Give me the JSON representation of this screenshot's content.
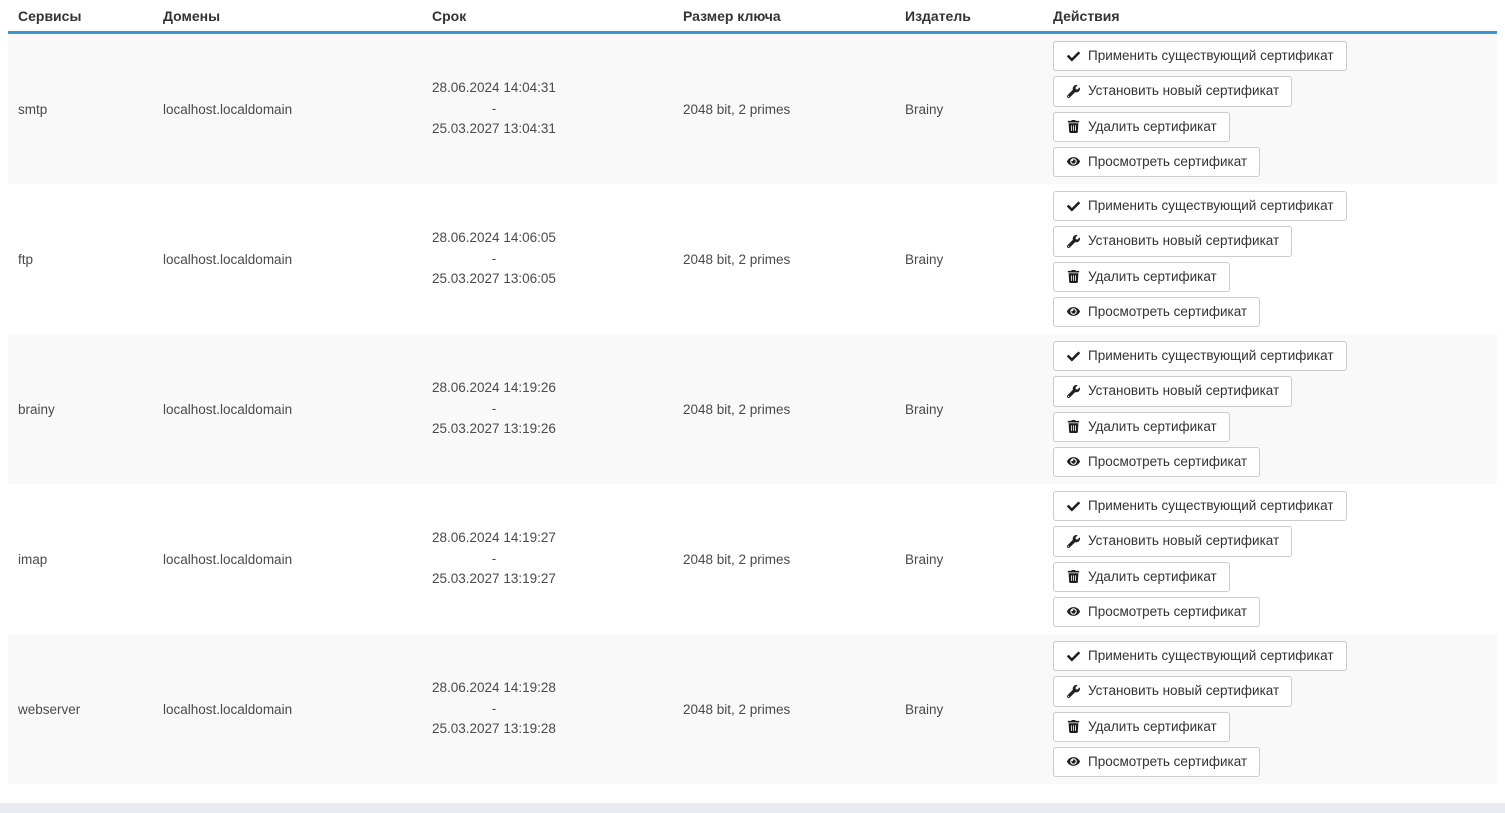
{
  "table": {
    "columns": [
      {
        "key": "service",
        "label": "Сервисы"
      },
      {
        "key": "domain",
        "label": "Домены"
      },
      {
        "key": "period",
        "label": "Срок"
      },
      {
        "key": "key_size",
        "label": "Размер ключа"
      },
      {
        "key": "issuer",
        "label": "Издатель"
      },
      {
        "key": "actions",
        "label": "Действия"
      }
    ],
    "rows": [
      {
        "service": "smtp",
        "domain": "localhost.localdomain",
        "valid_from": "28.06.2024 14:04:31",
        "separator": "-",
        "valid_to": "25.03.2027 13:04:31",
        "key_size": "2048 bit, 2 primes",
        "issuer": "Brainy"
      },
      {
        "service": "ftp",
        "domain": "localhost.localdomain",
        "valid_from": "28.06.2024 14:06:05",
        "separator": "-",
        "valid_to": "25.03.2027 13:06:05",
        "key_size": "2048 bit, 2 primes",
        "issuer": "Brainy"
      },
      {
        "service": "brainy",
        "domain": "localhost.localdomain",
        "valid_from": "28.06.2024 14:19:26",
        "separator": "-",
        "valid_to": "25.03.2027 13:19:26",
        "key_size": "2048 bit, 2 primes",
        "issuer": "Brainy"
      },
      {
        "service": "imap",
        "domain": "localhost.localdomain",
        "valid_from": "28.06.2024 14:19:27",
        "separator": "-",
        "valid_to": "25.03.2027 13:19:27",
        "key_size": "2048 bit, 2 primes",
        "issuer": "Brainy"
      },
      {
        "service": "webserver",
        "domain": "localhost.localdomain",
        "valid_from": "28.06.2024 14:19:28",
        "separator": "-",
        "valid_to": "25.03.2027 13:19:28",
        "key_size": "2048 bit, 2 primes",
        "issuer": "Brainy"
      }
    ],
    "actions": [
      {
        "label": "Применить существующий сертификат",
        "icon": "check-icon"
      },
      {
        "label": "Установить новый сертификат",
        "icon": "wrench-icon"
      },
      {
        "label": "Удалить сертификат",
        "icon": "trash-icon"
      },
      {
        "label": "Просмотреть сертификат",
        "icon": "eye-icon"
      }
    ],
    "colors": {
      "header_underline": "#3998d4",
      "row_alt_bg": "#f9f9f9",
      "scrollbar_track": "#e8ebf2"
    }
  }
}
